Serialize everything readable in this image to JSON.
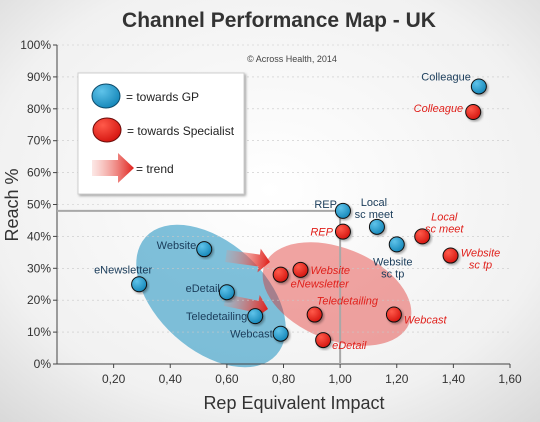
{
  "chart_data": {
    "type": "scatter",
    "title": "Channel Performance Map - UK",
    "xlabel": "Rep Equivalent Impact",
    "ylabel": "Reach %",
    "xlim": [
      0.0,
      1.6
    ],
    "ylim": [
      0,
      100
    ],
    "xticks": [
      0.2,
      0.4,
      0.6,
      0.8,
      1.0,
      1.2,
      1.4,
      1.6
    ],
    "xtick_labels": [
      "0,20",
      "0,40",
      "0,60",
      "0,80",
      "1,00",
      "1,20",
      "1,40",
      "1,60"
    ],
    "yticks": [
      0,
      10,
      20,
      30,
      40,
      50,
      60,
      70,
      80,
      90,
      100
    ],
    "ytick_labels": [
      "0%",
      "10%",
      "20%",
      "30%",
      "40%",
      "50%",
      "60%",
      "70%",
      "80%",
      "90%",
      "100%"
    ],
    "annotation": "© Across Health, 2014",
    "reference_point": {
      "x": 1.0,
      "y": 48
    },
    "legend": {
      "placement": "top-left",
      "entries": [
        {
          "label": "= towards GP",
          "color": "#1a8fc0"
        },
        {
          "label": "= towards Specialist",
          "color": "#e0201b"
        },
        {
          "label": "= trend",
          "color": "#e0201b"
        }
      ]
    },
    "series": [
      {
        "color": "#1a8fc0",
        "points": [
          {
            "label": "Colleague",
            "x": 1.49,
            "y": 87
          },
          {
            "label": "REP",
            "x": 1.01,
            "y": 48
          },
          {
            "label": "Local sc meet",
            "x": 1.13,
            "y": 43
          },
          {
            "label": "Website sc tp",
            "x": 1.2,
            "y": 37.5
          },
          {
            "label": "Website",
            "x": 0.52,
            "y": 36
          },
          {
            "label": "eNewsletter",
            "x": 0.29,
            "y": 25
          },
          {
            "label": "eDetail",
            "x": 0.6,
            "y": 22.5
          },
          {
            "label": "Teledetailing",
            "x": 0.7,
            "y": 15
          },
          {
            "label": "Webcast",
            "x": 0.79,
            "y": 9.5
          }
        ]
      },
      {
        "color": "#e0201b",
        "points": [
          {
            "label": "Colleague",
            "x": 1.47,
            "y": 79
          },
          {
            "label": "REP",
            "x": 1.01,
            "y": 41.5
          },
          {
            "label": "Local sc meet",
            "x": 1.29,
            "y": 40
          },
          {
            "label": "Website sc tp",
            "x": 1.39,
            "y": 34
          },
          {
            "label": "Website",
            "x": 0.86,
            "y": 29.5
          },
          {
            "label": "eNewsletter",
            "x": 0.79,
            "y": 28
          },
          {
            "label": "Teledetailing",
            "x": 0.91,
            "y": 15.5
          },
          {
            "label": "Webcast",
            "x": 1.19,
            "y": 15.5
          },
          {
            "label": "eDetail",
            "x": 0.94,
            "y": 7.5
          }
        ]
      }
    ]
  }
}
